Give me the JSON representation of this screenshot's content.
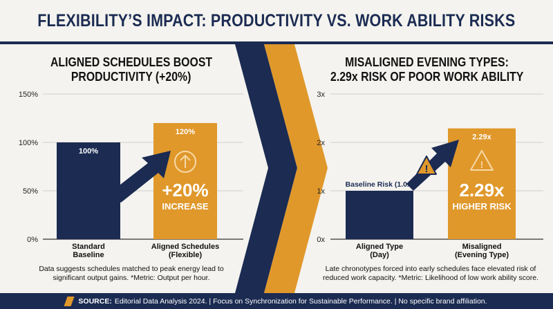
{
  "header": {
    "title": "FLEXIBILITY’S IMPACT: PRODUCTIVITY VS. WORK ABILITY RISKS"
  },
  "colors": {
    "navy": "#1b2b52",
    "orange": "#e0982b",
    "background": "#f4f3ef"
  },
  "left_panel": {
    "title_line1": "ALIGNED SCHEDULES BOOST",
    "title_line2": "PRODUCTIVITY (+20%)",
    "note_line1": "Data suggests schedules matched to peak energy lead to",
    "note_line2": "significant output gains. *Metric: Output per hour.",
    "callout_value": "+20%",
    "callout_label": "INCREASE",
    "icon": "arrow-up-circle-icon"
  },
  "right_panel": {
    "title_line1": "MISALIGNED EVENING TYPES:",
    "title_line2": "2.29x RISK OF POOR WORK ABILITY",
    "note_line1": "Late chronotypes forced into early schedules face elevated risk of",
    "note_line2": "reduced work capacity. *Metric: Likelihood of low work ability score.",
    "baseline_label": "Baseline Risk (1.0x)",
    "callout_value": "2.29x",
    "callout_label": "HIGHER RISK",
    "icon": "warning-triangle-icon"
  },
  "footer": {
    "source_label": "SOURCE:",
    "text": "Editorial Data Analysis 2024. | Focus on Synchronization for Sustainable Performance. | No specific brand affiliation."
  },
  "chart_data": [
    {
      "type": "bar",
      "title": "ALIGNED SCHEDULES BOOST PRODUCTIVITY (+20%)",
      "categories": [
        [
          "Standard",
          "Baseline"
        ],
        [
          "Aligned Schedules",
          "(Flexible)"
        ]
      ],
      "values": [
        100,
        120
      ],
      "value_labels": [
        "100%",
        "120%"
      ],
      "yticks": [
        "0%",
        "50%",
        "100%",
        "150%"
      ],
      "ylim": [
        0,
        150
      ],
      "grid": true,
      "colors": [
        "#1b2b52",
        "#e0982b"
      ]
    },
    {
      "type": "bar",
      "title": "MISALIGNED EVENING TYPES: 2.29x RISK OF POOR WORK ABILITY",
      "categories": [
        [
          "Aligned Type",
          "(Day)"
        ],
        [
          "Misaligned",
          "(Evening Type)"
        ]
      ],
      "values": [
        1.0,
        2.29
      ],
      "value_labels": [
        "",
        "2.29x"
      ],
      "yticks": [
        "0x",
        "1x",
        "2x",
        "3x"
      ],
      "ylim": [
        0,
        3
      ],
      "grid": true,
      "colors": [
        "#1b2b52",
        "#e0982b"
      ]
    }
  ]
}
